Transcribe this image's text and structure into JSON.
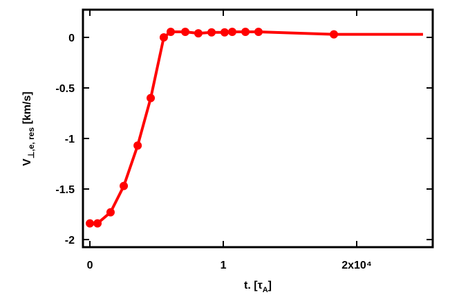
{
  "chart_data": {
    "type": "line",
    "xlabel": {
      "main": "t. [τ",
      "sub": "A",
      "end": "]"
    },
    "ylabel": {
      "main": "V",
      "sub": "⊥,e, res",
      "end": " [km/s]"
    },
    "x": [
      0,
      570,
      1550,
      2540,
      3580,
      4560,
      5540,
      6060,
      7150,
      8130,
      9120,
      10100,
      10670,
      11660,
      12640,
      18290,
      24970
    ],
    "series": [
      {
        "color": "#ff0000",
        "values": [
          -1.84,
          -1.84,
          -1.73,
          -1.47,
          -1.07,
          -0.6,
          0.0,
          0.055,
          0.055,
          0.04,
          0.05,
          0.05,
          0.055,
          0.055,
          0.055,
          0.03,
          0.03
        ],
        "markers": [
          true,
          true,
          true,
          true,
          true,
          true,
          true,
          true,
          true,
          true,
          true,
          true,
          true,
          true,
          true,
          true,
          false
        ]
      }
    ],
    "xlim": [
      -520,
      25700
    ],
    "ylim": [
      -2.075,
      0.274
    ],
    "xticks": [
      0,
      {
        "value": 10000,
        "label": "1"
      },
      {
        "value": 20000,
        "label": "2x10⁴"
      }
    ],
    "yticks": [
      0,
      -0.5,
      -1,
      -1.5,
      -2
    ]
  }
}
